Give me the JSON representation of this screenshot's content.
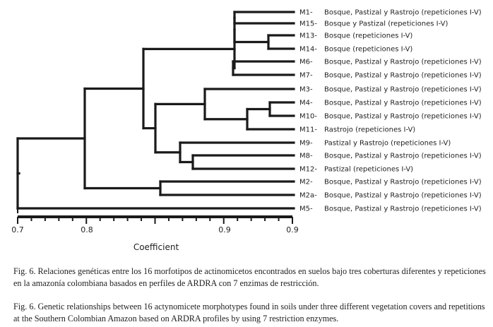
{
  "chart_data": {
    "type": "dendrogram",
    "xlabel": "Coefficient",
    "xlim": [
      0.7,
      0.9
    ],
    "ticks": [
      "0.7",
      "0.8",
      "0.9",
      "0.9"
    ],
    "leaves": [
      {
        "id": "M1-",
        "label": "Bosque, Pastizal y Rastrojo (repeticiones I-V)"
      },
      {
        "id": "M15-",
        "label": "Bosque y Pastizal (repeticiones I-V)"
      },
      {
        "id": "M13-",
        "label": "Bosque (repeticiones I-V)"
      },
      {
        "id": "M14-",
        "label": "Bosque (repeticiones I-V)"
      },
      {
        "id": "M6-",
        "label": "Bosque, Pastizal y Rastrojo (repeticiones I-V)"
      },
      {
        "id": "M7-",
        "label": "Bosque, Pastizal y Rastrojo (repeticiones I-V)"
      },
      {
        "id": "M3-",
        "label": "Bosque, Pastizal y Rastrojo (repeticiones I-V)"
      },
      {
        "id": "M4-",
        "label": "Bosque, Pastizal y Rastrojo (repeticiones I-V)"
      },
      {
        "id": "M10-",
        "label": "Bosque, Pastizal y Rastrojo (repeticiones I-V)"
      },
      {
        "id": "M11-",
        "label": "Rastrojo (repeticiones I-V)"
      },
      {
        "id": "M9-",
        "label": "Pastizal y Rastrojo (repeticiones I-V)"
      },
      {
        "id": "M8-",
        "label": "Bosque, Pastizal y Rastrojo (repeticiones I-V)"
      },
      {
        "id": "M12-",
        "label": "Pastizal (repeticiones I-V)"
      },
      {
        "id": "M2-",
        "label": "Bosque, Pastizal y Rastrojo (repeticiones I-V)"
      },
      {
        "id": "M2a-",
        "label": "Bosque, Pastizal y Rastrojo (repeticiones I-V)"
      },
      {
        "id": "M5-",
        "label": "Bosque, Pastizal y Rastrojo (repeticiones I-V)"
      }
    ]
  },
  "caption_es": "Fig. 6. Relaciones genéticas entre los 16 morfotipos de actinomicetos encontrados en suelos bajo tres coberturas diferentes y repeticiones en la amazonía colombiana basados en perfiles de ARDRA con 7 enzimas de restricción.",
  "caption_en": "Fig. 6. Genetic relationships between 16 actynomicete morphotypes found in soils under three different vegetation covers and repetitions at the Southern Colombian Amazon based on ARDRA profiles by using 7 restriction enzymes."
}
